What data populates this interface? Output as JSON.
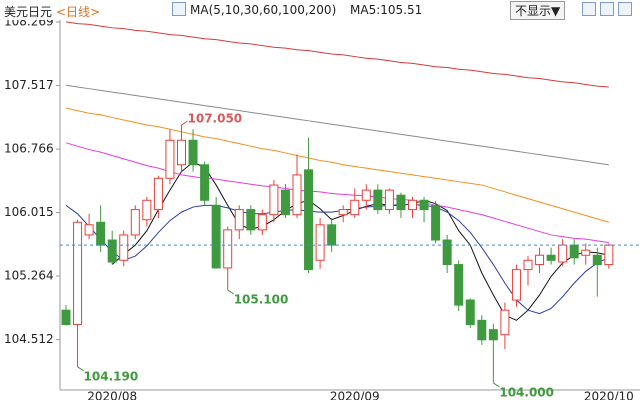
{
  "header": {
    "symbol": "美元日元",
    "period": "<日线>",
    "ma_label": "MA(5,10,30,60,100,200)",
    "ma5_readout": "MA5:105.51",
    "button": "不显示▼"
  },
  "chart_data": {
    "type": "candlestick",
    "categories": [
      null,
      null,
      null,
      null,
      "2020/08",
      null,
      null,
      null,
      null,
      null,
      null,
      null,
      null,
      null,
      null,
      null,
      null,
      null,
      null,
      null,
      null,
      null,
      null,
      null,
      null,
      "2020/09",
      null,
      null,
      null,
      null,
      null,
      null,
      null,
      null,
      null,
      null,
      null,
      null,
      null,
      null,
      null,
      null,
      null,
      null,
      null,
      null,
      null,
      "2020/10"
    ],
    "open": [
      104.86,
      104.69,
      105.75,
      105.9,
      105.69,
      105.45,
      105.75,
      105.93,
      106.05,
      106.42,
      106.58,
      106.87,
      106.58,
      106.1,
      105.36,
      105.81,
      106.05,
      105.81,
      105.99,
      106.28,
      105.99,
      106.52,
      105.45,
      105.87,
      105.99,
      105.99,
      106.16,
      106.28,
      106.05,
      106.22,
      106.05,
      106.16,
      106.1,
      105.69,
      105.4,
      104.98,
      104.74,
      104.63,
      104.57,
      104.98,
      105.34,
      105.4,
      105.51,
      105.43,
      105.63,
      105.51,
      105.51,
      105.4
    ],
    "high": [
      104.92,
      105.93,
      106.0,
      106.1,
      105.8,
      105.8,
      106.1,
      106.2,
      106.45,
      107.0,
      107.05,
      107.0,
      106.62,
      106.2,
      105.85,
      106.1,
      106.1,
      106.05,
      106.4,
      106.35,
      106.7,
      106.9,
      105.95,
      105.95,
      106.1,
      106.3,
      106.35,
      106.35,
      106.3,
      106.25,
      106.2,
      106.2,
      106.15,
      105.75,
      105.45,
      105.0,
      104.8,
      104.7,
      104.95,
      105.4,
      105.5,
      105.6,
      105.6,
      105.7,
      105.7,
      105.65,
      105.6,
      105.65
    ],
    "low": [
      104.68,
      104.19,
      105.7,
      105.55,
      105.4,
      105.38,
      105.7,
      105.85,
      105.95,
      106.35,
      106.5,
      106.5,
      106.1,
      105.35,
      105.1,
      105.7,
      105.75,
      105.75,
      105.9,
      105.95,
      105.95,
      105.3,
      105.35,
      105.55,
      105.9,
      105.95,
      106.05,
      106.0,
      106.0,
      105.95,
      105.95,
      105.9,
      105.65,
      105.3,
      104.85,
      104.65,
      104.45,
      104.0,
      104.4,
      104.9,
      105.15,
      105.3,
      105.4,
      105.38,
      105.4,
      105.4,
      105.02,
      105.35
    ],
    "close": [
      104.69,
      105.9,
      105.87,
      105.63,
      105.43,
      105.75,
      106.05,
      106.16,
      106.42,
      106.87,
      106.87,
      106.58,
      106.16,
      105.36,
      105.81,
      106.05,
      105.81,
      105.99,
      106.34,
      105.99,
      106.46,
      105.34,
      105.87,
      105.63,
      106.05,
      106.16,
      106.28,
      106.05,
      106.28,
      106.05,
      106.16,
      106.05,
      105.69,
      105.4,
      104.92,
      104.69,
      104.51,
      104.51,
      104.86,
      105.34,
      105.45,
      105.51,
      105.45,
      105.63,
      105.48,
      105.57,
      105.4,
      105.63
    ],
    "up_color": "#e8413c",
    "down_color": "#3f9a3f",
    "last_line_color": "#3c8ad8",
    "ylim": [
      103.916,
      108.529
    ],
    "yticks": [
      108.269,
      107.517,
      106.766,
      106.015,
      105.264,
      104.512
    ],
    "series": [
      {
        "color": "#111111",
        "values": [
          null,
          null,
          null,
          null,
          105.4,
          105.52,
          105.63,
          105.8,
          106.05,
          106.28,
          106.5,
          106.61,
          106.55,
          106.34,
          106.1,
          105.87,
          105.82,
          105.85,
          105.93,
          106.04,
          106.12,
          106.16,
          106.06,
          105.93,
          105.98,
          106.04,
          106.09,
          106.12,
          106.1,
          106.1,
          106.12,
          106.16,
          106.12,
          106.04,
          105.8,
          105.63,
          105.3,
          105.04,
          104.8,
          104.74,
          104.86,
          105.04,
          105.26,
          105.42,
          105.51,
          105.55,
          105.54,
          105.51
        ]
      },
      {
        "color": "#2a3aa8",
        "values": [
          106.1,
          106.0,
          105.85,
          105.7,
          105.55,
          105.45,
          105.5,
          105.62,
          105.78,
          105.92,
          106.02,
          106.08,
          106.1,
          106.1,
          106.07,
          106.03,
          106.0,
          106.0,
          106.02,
          106.04,
          106.05,
          106.03,
          106.02,
          106.02,
          106.04,
          106.06,
          106.08,
          106.09,
          106.1,
          106.11,
          106.11,
          106.1,
          106.08,
          106.02,
          105.92,
          105.78,
          105.6,
          105.4,
          105.18,
          104.98,
          104.86,
          104.82,
          104.88,
          105.02,
          105.18,
          105.32,
          105.42,
          105.48
        ]
      },
      {
        "color": "#e83ce0",
        "values": [
          106.84,
          106.8,
          106.76,
          106.73,
          106.69,
          106.65,
          106.61,
          106.57,
          106.54,
          106.5,
          106.46,
          106.44,
          106.42,
          106.41,
          106.39,
          106.37,
          106.35,
          106.33,
          106.32,
          106.3,
          106.28,
          106.27,
          106.26,
          106.24,
          106.23,
          106.22,
          106.21,
          106.2,
          106.18,
          106.17,
          106.16,
          106.13,
          106.1,
          106.08,
          106.05,
          106.02,
          105.99,
          105.95,
          105.91,
          105.87,
          105.83,
          105.79,
          105.75,
          105.73,
          105.71,
          105.7,
          105.68,
          105.66
        ]
      },
      {
        "color": "#f39020",
        "values": [
          107.25,
          107.22,
          107.19,
          107.17,
          107.14,
          107.11,
          107.08,
          107.05,
          107.03,
          107.0,
          106.97,
          106.94,
          106.91,
          106.89,
          106.86,
          106.83,
          106.8,
          106.77,
          106.75,
          106.72,
          106.69,
          106.66,
          106.63,
          106.61,
          106.58,
          106.56,
          106.54,
          106.52,
          106.5,
          106.48,
          106.46,
          106.44,
          106.42,
          106.4,
          106.38,
          106.36,
          106.34,
          106.3,
          106.26,
          106.22,
          106.18,
          106.14,
          106.1,
          106.06,
          106.02,
          105.98,
          105.94,
          105.9
        ]
      },
      {
        "color": "#8a8a8a",
        "values": [
          107.52,
          107.5,
          107.48,
          107.46,
          107.44,
          107.42,
          107.4,
          107.38,
          107.36,
          107.34,
          107.32,
          107.3,
          107.28,
          107.26,
          107.24,
          107.22,
          107.2,
          107.18,
          107.16,
          107.14,
          107.12,
          107.1,
          107.08,
          107.06,
          107.04,
          107.02,
          107.0,
          106.98,
          106.96,
          106.94,
          106.92,
          106.9,
          106.88,
          106.86,
          106.84,
          106.82,
          106.8,
          106.78,
          106.76,
          106.74,
          106.72,
          106.7,
          106.68,
          106.66,
          106.64,
          106.62,
          106.6,
          106.58
        ]
      },
      {
        "color": "#d83a3a",
        "values": [
          108.27,
          108.25,
          108.24,
          108.22,
          108.2,
          108.19,
          108.17,
          108.16,
          108.14,
          108.12,
          108.11,
          108.09,
          108.07,
          108.06,
          108.04,
          108.02,
          108.01,
          107.99,
          107.97,
          107.96,
          107.94,
          107.93,
          107.91,
          107.89,
          107.88,
          107.86,
          107.84,
          107.83,
          107.81,
          107.79,
          107.78,
          107.76,
          107.74,
          107.73,
          107.71,
          107.7,
          107.68,
          107.66,
          107.65,
          107.63,
          107.61,
          107.6,
          107.58,
          107.56,
          107.55,
          107.53,
          107.51,
          107.5
        ]
      }
    ],
    "annotations": [
      {
        "text": "107.050",
        "value": 107.05,
        "color": "#d85a5a"
      },
      {
        "text": "105.100",
        "value": 105.1,
        "color": "#3f9a3f"
      },
      {
        "text": "104.190",
        "value": 104.19,
        "color": "#3f9a3f"
      },
      {
        "text": "104.000",
        "value": 104.0,
        "color": "#3f9a3f"
      }
    ]
  }
}
